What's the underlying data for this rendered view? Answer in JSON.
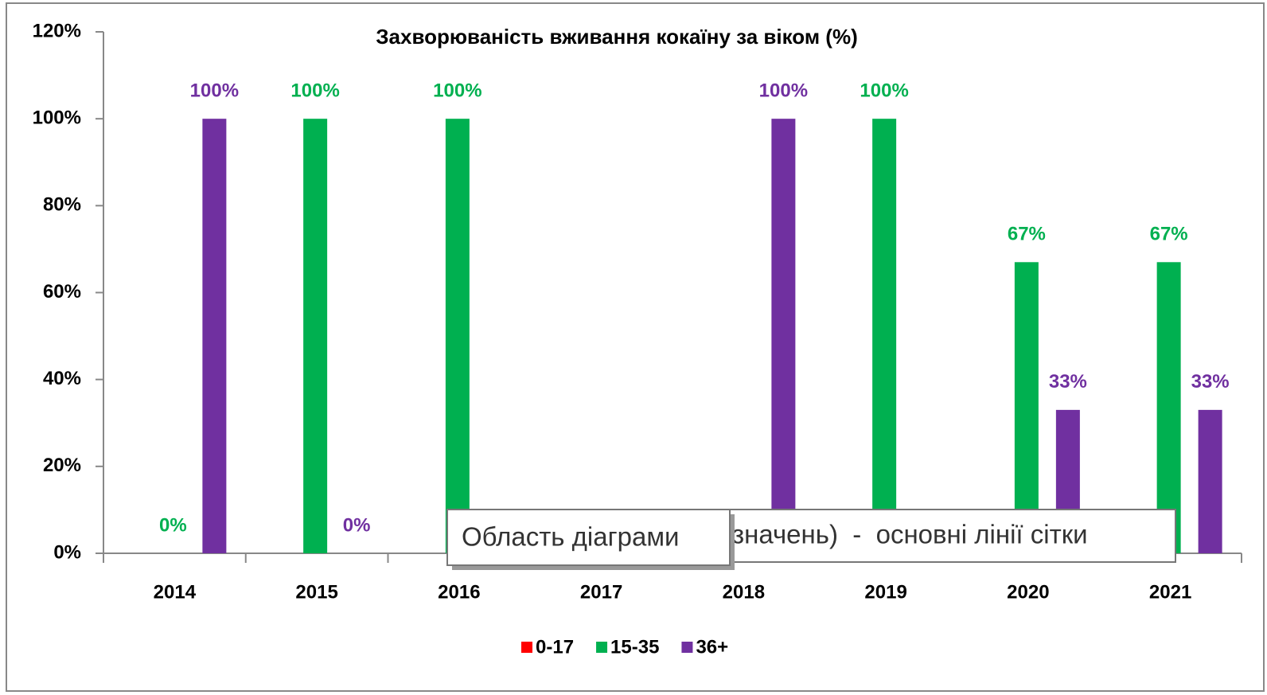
{
  "chart_data": {
    "type": "bar",
    "title": "Захворюваність вживання кокаїну за віком (%)",
    "categories": [
      "2014",
      "2015",
      "2016",
      "2017",
      "2018",
      "2019",
      "2020",
      "2021"
    ],
    "series": [
      {
        "name": "0-17",
        "color": "#ff0000",
        "values": [
          null,
          null,
          null,
          null,
          null,
          null,
          null,
          null
        ]
      },
      {
        "name": "15-35",
        "color": "#00b050",
        "values": [
          0,
          100,
          100,
          null,
          null,
          100,
          67,
          67
        ],
        "value_labels": [
          "0%",
          "100%",
          "100%",
          null,
          null,
          "100%",
          "67%",
          "67%"
        ]
      },
      {
        "name": "36+",
        "color": "#7030a0",
        "values": [
          100,
          0,
          null,
          null,
          100,
          null,
          33,
          33
        ],
        "value_labels": [
          "100%",
          "0%",
          null,
          null,
          "100%",
          null,
          "33%",
          "33%"
        ]
      }
    ],
    "ylim": [
      0,
      120
    ],
    "yticks": [
      {
        "value": 0,
        "label": "0%"
      },
      {
        "value": 20,
        "label": "20%"
      },
      {
        "value": 40,
        "label": "40%"
      },
      {
        "value": 60,
        "label": "60%"
      },
      {
        "value": 80,
        "label": "80%"
      },
      {
        "value": 100,
        "label": "100%"
      },
      {
        "value": 120,
        "label": "120%"
      }
    ],
    "grid": false,
    "legend": "bottom",
    "tooltips": [
      "Область діаграми",
      "значень)  -  основні лінії сітки"
    ]
  }
}
